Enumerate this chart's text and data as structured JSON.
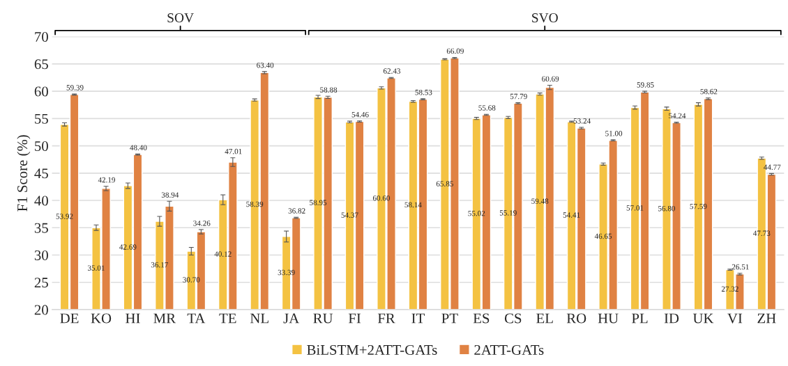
{
  "chart_data": {
    "type": "bar",
    "ylabel": "F1 Score (%)",
    "categories": [
      "DE",
      "KO",
      "HI",
      "MR",
      "TA",
      "TE",
      "NL",
      "JA",
      "RU",
      "FI",
      "FR",
      "IT",
      "PT",
      "ES",
      "CS",
      "EL",
      "RO",
      "HU",
      "PL",
      "ID",
      "UK",
      "VI",
      "ZH"
    ],
    "series": [
      {
        "name": "BiLSTM+2ATT-GATs",
        "color": "#f4c242",
        "values": [
          53.92,
          35.01,
          42.69,
          36.17,
          30.7,
          40.12,
          58.39,
          33.39,
          58.95,
          54.37,
          60.6,
          58.14,
          65.85,
          55.02,
          55.19,
          59.48,
          54.41,
          46.65,
          57.01,
          56.8,
          57.59,
          27.32,
          47.73
        ],
        "errors": [
          0.3,
          0.5,
          0.5,
          0.9,
          0.7,
          0.9,
          0.2,
          1.0,
          0.3,
          0.15,
          0.2,
          0.15,
          0.1,
          0.2,
          0.2,
          0.2,
          0.1,
          0.2,
          0.3,
          0.3,
          0.3,
          0.1,
          0.2
        ],
        "value_labels": [
          "53.92",
          "35.01",
          "42.69",
          "36.17",
          "30.70",
          "40.12",
          "58.39",
          "33.39",
          "58.95",
          "54.37",
          "60.60",
          "58.14",
          "65.85",
          "55.02",
          "55.19",
          "59.48",
          "54.41",
          "46.65",
          "57.01",
          "56.80",
          "57.59",
          "27.32",
          "47.73"
        ]
      },
      {
        "name": "2ATT-GATs",
        "color": "#e08243",
        "values": [
          59.39,
          42.19,
          48.4,
          38.94,
          34.26,
          47.01,
          63.4,
          36.82,
          58.88,
          54.46,
          62.43,
          58.53,
          66.09,
          55.68,
          57.79,
          60.69,
          53.24,
          51.0,
          59.85,
          54.24,
          58.62,
          26.51,
          44.77
        ],
        "errors": [
          0.1,
          0.4,
          0.1,
          0.9,
          0.4,
          0.8,
          0.2,
          0.1,
          0.2,
          0.1,
          0.1,
          0.1,
          0.1,
          0.1,
          0.1,
          0.4,
          0.15,
          0.1,
          0.15,
          0.1,
          0.15,
          0.15,
          0.15
        ],
        "value_labels": [
          "59.39",
          "42.19",
          "48.40",
          "38.94",
          "34.26",
          "47.01",
          "63.40",
          "36.82",
          "58.88",
          "54.46",
          "62.43",
          "58.53",
          "66.09",
          "55.68",
          "57.79",
          "60.69",
          "53.24",
          "51.00",
          "59.85",
          "54.24",
          "58.62",
          "26.51",
          "44.77"
        ]
      }
    ],
    "ylim": [
      20,
      70
    ],
    "yticks": [
      20,
      25,
      30,
      35,
      40,
      45,
      50,
      55,
      60,
      65,
      70
    ],
    "grid": "y",
    "legend": "bottom",
    "data_labels": true,
    "annotations": [
      "SOV",
      "SVO"
    ]
  }
}
